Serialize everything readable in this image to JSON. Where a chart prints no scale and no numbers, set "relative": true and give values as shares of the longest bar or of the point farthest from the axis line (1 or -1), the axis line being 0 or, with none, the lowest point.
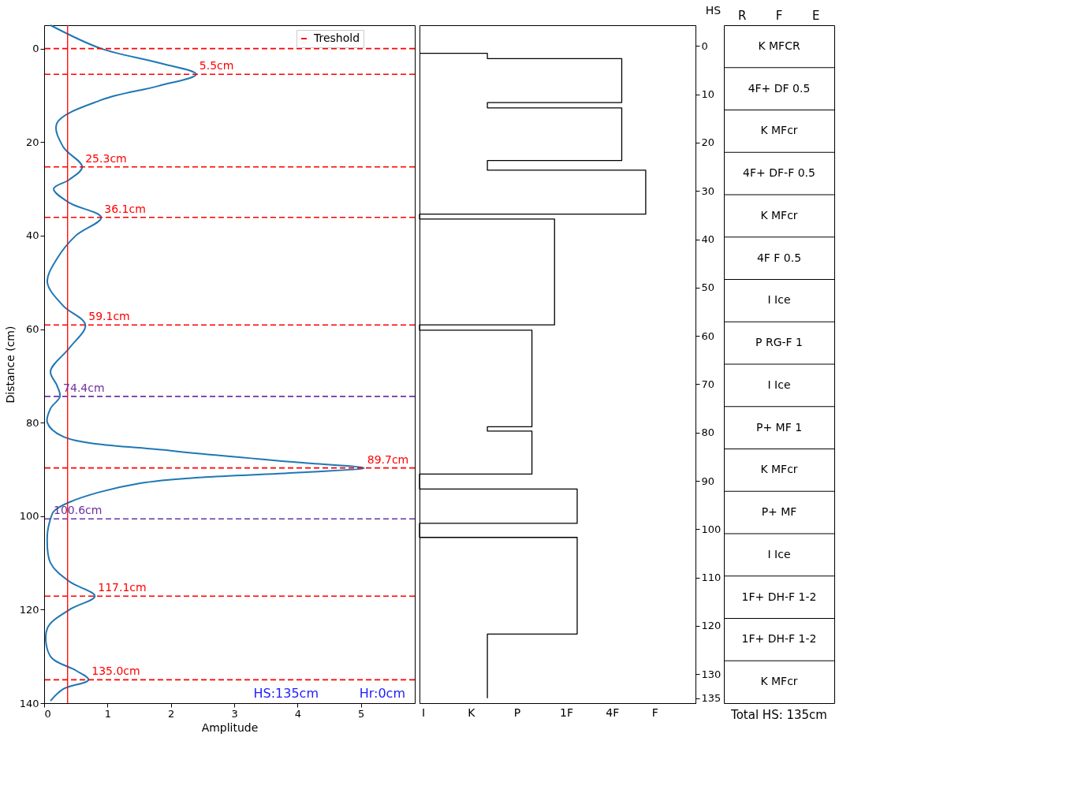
{
  "chart_data": [
    {
      "type": "line",
      "orientation": "horizontal",
      "xlabel": "Amplitude",
      "ylabel": "Distance (cm)",
      "xlim": [
        0,
        5.85
      ],
      "xticks": [
        0,
        1,
        2,
        3,
        4,
        5
      ],
      "ylim": [
        140,
        -5
      ],
      "yticks": [
        0,
        20,
        40,
        60,
        80,
        100,
        120,
        140
      ],
      "legend": "top right",
      "series": [
        {
          "color": "#1f77b4",
          "x": [
            -5,
            0,
            3,
            5.5,
            8,
            11,
            16,
            21,
            25.3,
            28,
            30,
            33,
            36.1,
            40,
            45,
            50,
            55,
            59.1,
            64,
            69,
            72,
            74.4,
            77,
            80,
            83,
            86,
            88.5,
            89.7,
            90.7,
            93,
            97,
            99,
            100.6,
            104,
            110,
            114,
            117.1,
            120,
            124,
            130,
            133,
            135,
            137,
            139.5
          ],
          "values": [
            0.1,
            0.9,
            1.8,
            2.4,
            1.8,
            0.9,
            0.2,
            0.3,
            0.6,
            0.4,
            0.15,
            0.4,
            0.9,
            0.5,
            0.2,
            0.05,
            0.3,
            0.65,
            0.4,
            0.1,
            0.2,
            0.25,
            0.1,
            0.05,
            0.3,
            2,
            4,
            5.05,
            4,
            1.5,
            0.4,
            0.15,
            0.1,
            0.05,
            0.1,
            0.4,
            0.8,
            0.4,
            0.05,
            0.1,
            0.5,
            0.7,
            0.3,
            0.1
          ]
        }
      ],
      "ref_lines": [
        {
          "axis": "x",
          "value": 0.37,
          "color": "#ff0000",
          "line_style": "solid"
        },
        {
          "axis": "y",
          "value": 0,
          "label": "Treshold",
          "color": "#ff0000",
          "line_style": "dashed"
        },
        {
          "axis": "y",
          "value": 5.5,
          "color": "#ff0000",
          "line_style": "dashed"
        },
        {
          "axis": "y",
          "value": 25.3,
          "color": "#ff0000",
          "line_style": "dashed"
        },
        {
          "axis": "y",
          "value": 36.1,
          "color": "#ff0000",
          "line_style": "dashed"
        },
        {
          "axis": "y",
          "value": 59.1,
          "color": "#ff0000",
          "line_style": "dashed"
        },
        {
          "axis": "y",
          "value": 74.4,
          "color": "#7030a0",
          "line_style": "dashed"
        },
        {
          "axis": "y",
          "value": 89.7,
          "color": "#ff0000",
          "line_style": "dashed"
        },
        {
          "axis": "y",
          "value": 100.6,
          "color": "#7030a0",
          "line_style": "dashed"
        },
        {
          "axis": "y",
          "value": 117.1,
          "color": "#ff0000",
          "line_style": "dashed"
        },
        {
          "axis": "y",
          "value": 135,
          "color": "#ff0000",
          "line_style": "dashed"
        }
      ],
      "annotations": [
        {
          "text": "5.5cm",
          "x": 2.4,
          "y": 5.5
        },
        {
          "text": "25.3cm",
          "x": 0.6,
          "y": 25.3
        },
        {
          "text": "36.1cm",
          "x": 0.9,
          "y": 36.1
        },
        {
          "text": "59.1cm",
          "x": 0.65,
          "y": 59.1
        },
        {
          "text": "74.4cm",
          "x": 0.25,
          "y": 74.4
        },
        {
          "text": "89.7cm",
          "x": 5.05,
          "y": 89.7
        },
        {
          "text": "100.6cm",
          "x": 0.1,
          "y": 100.6
        },
        {
          "text": "117.1cm",
          "x": 0.8,
          "y": 117.1
        },
        {
          "text": "135.0cm",
          "x": 0.7,
          "y": 135
        },
        "HS:135cm",
        "Hr:0cm"
      ]
    },
    {
      "type": "step",
      "orientation": "horizontal",
      "relative": true,
      "ylabel": "HS",
      "ylim": [
        136,
        -4.3
      ],
      "yticks": [
        0,
        10,
        20,
        30,
        40,
        50,
        60,
        70,
        80,
        90,
        100,
        110,
        120,
        130,
        135
      ],
      "annotations": [
        "I",
        "K",
        "P",
        "1F",
        "4F",
        "F"
      ],
      "series": [
        {
          "color": "#000000",
          "x": [
            1.5,
            1.5,
            2.6,
            11.7,
            12.8,
            23.7,
            25.7,
            34.8,
            35.8,
            57.7,
            58.8,
            78.8,
            79.7,
            88.6,
            91.7,
            98.8,
            101.7,
            121.7,
            135
          ],
          "values": [
            0,
            0.3,
            0.894,
            0.3,
            0.894,
            0.3,
            1,
            0,
            0.597,
            0,
            0.497,
            0.3,
            0.497,
            0,
            0.697,
            0,
            0.697,
            0.3,
            0.3
          ]
        }
      ]
    },
    {
      "type": "other",
      "categories": [
        "R",
        "F",
        "E"
      ],
      "annotations": [
        "K   MFCR",
        "4F+   DF   0.5",
        "K   MFcr",
        "4F+   DF-F   0.5",
        "K   MFcr",
        "4F   F   0.5",
        "I   Ice",
        "P   RG-F   1",
        "I   Ice",
        "P+   MF   1",
        "K   MFcr",
        "P+   MF",
        "I   Ice",
        "1F+   DH-F   1-2",
        "1F+   DH-F   1-2",
        "K   MFcr",
        "Total HS: 135cm"
      ]
    }
  ]
}
